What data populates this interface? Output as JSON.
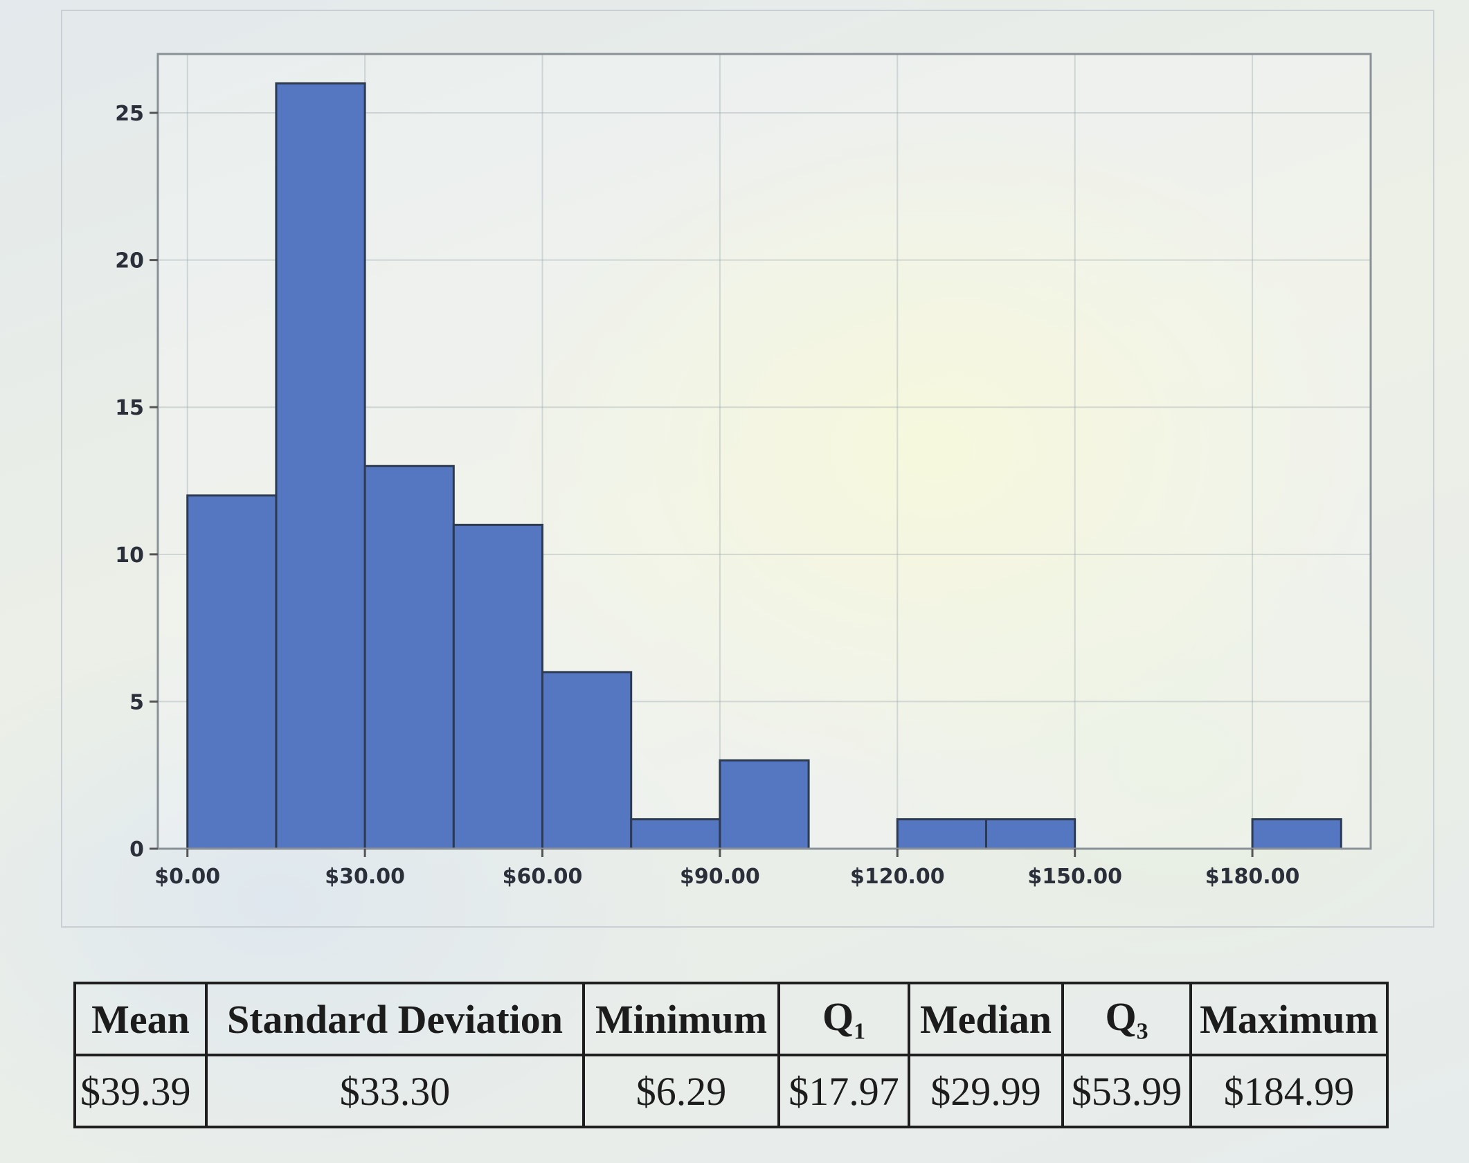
{
  "chart_data": {
    "type": "bar",
    "title": "",
    "xlabel": "",
    "ylabel": "",
    "bin_edges": [
      0,
      15,
      30,
      45,
      60,
      75,
      90,
      105,
      120,
      135,
      150,
      165,
      180,
      195
    ],
    "values": [
      12,
      26,
      13,
      11,
      6,
      1,
      3,
      0,
      1,
      1,
      0,
      0,
      1
    ],
    "xticks": [
      0,
      30,
      60,
      90,
      120,
      150,
      180
    ],
    "xtick_labels": [
      "$0.00",
      "$30.00",
      "$60.00",
      "$90.00",
      "$120.00",
      "$150.00",
      "$180.00"
    ],
    "yticks": [
      0,
      5,
      10,
      15,
      20,
      25
    ],
    "ytick_labels": [
      "0",
      "5",
      "10",
      "15",
      "20",
      "25"
    ],
    "xlim": [
      -5,
      200
    ],
    "ylim": [
      0,
      27
    ],
    "grid": true,
    "bar_color": "#5577c2",
    "bar_edge_color": "#2c3a52"
  },
  "summary_table": {
    "headers": [
      "Mean",
      "Standard Deviation",
      "Minimum",
      "Q",
      "Median",
      "Q",
      "Maximum"
    ],
    "subscripts": [
      "",
      "",
      "",
      "1",
      "",
      "3",
      ""
    ],
    "values": [
      "$39.39",
      "$33.30",
      "$6.29",
      "$17.97",
      "$29.99",
      "$53.99",
      "$184.99"
    ]
  }
}
